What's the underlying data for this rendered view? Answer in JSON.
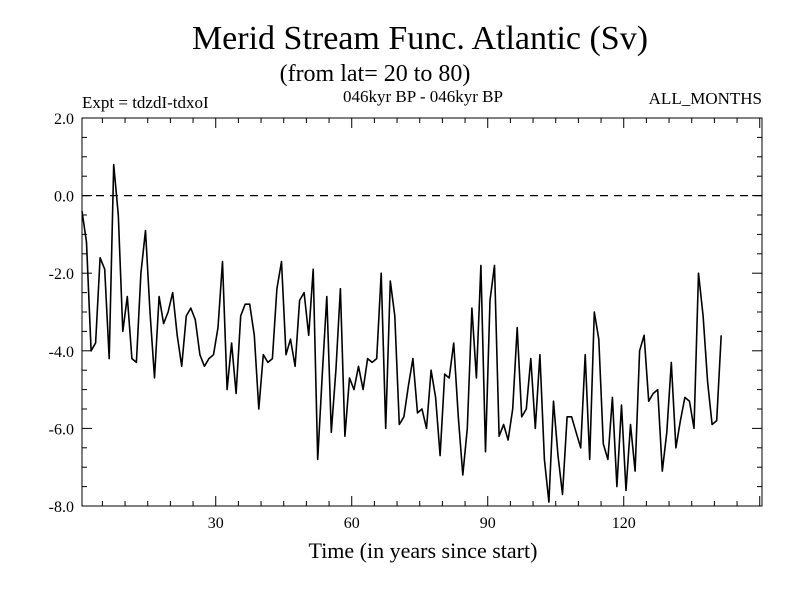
{
  "chart_data": {
    "type": "line",
    "title": "Merid Stream Func. Atlantic (Sv)",
    "subtitle": "(from lat= 20 to 80)",
    "annotation_left": "Expt = tdzdI-tdxoI",
    "annotation_center": "046kyr BP - 046kyr BP",
    "annotation_right": "ALL_MONTHS",
    "xlabel": "Time (in years since start)",
    "ylabel": "",
    "xlim": [
      0.5,
      150.5
    ],
    "ylim": [
      -8.0,
      2.0
    ],
    "x_ticks": [
      30,
      60,
      90,
      120
    ],
    "x_tick_labels": [
      "30",
      "60",
      "90",
      "120"
    ],
    "y_ticks": [
      2.0,
      0.0,
      -2.0,
      -4.0,
      -6.0,
      -8.0
    ],
    "y_tick_labels": [
      "2.0",
      "0.0",
      "-2.0",
      "-4.0",
      "-6.0",
      "-8.0"
    ],
    "reference_line": 0.0,
    "x_start": 0.5,
    "x_step": 1,
    "series": [
      {
        "name": "Merid Stream Func. Atlantic",
        "values": [
          -0.4,
          -1.2,
          -4.0,
          -3.8,
          -1.6,
          -1.9,
          -4.2,
          0.8,
          -0.5,
          -3.5,
          -2.6,
          -4.2,
          -4.3,
          -2.0,
          -0.9,
          -3.0,
          -4.7,
          -2.6,
          -3.3,
          -3.0,
          -2.5,
          -3.6,
          -4.4,
          -3.1,
          -2.9,
          -3.2,
          -4.1,
          -4.4,
          -4.2,
          -4.1,
          -3.4,
          -1.7,
          -5.0,
          -3.8,
          -5.1,
          -3.1,
          -2.8,
          -2.8,
          -3.6,
          -5.5,
          -4.1,
          -4.3,
          -4.2,
          -2.4,
          -1.7,
          -4.1,
          -3.7,
          -4.4,
          -2.7,
          -2.5,
          -3.6,
          -1.9,
          -6.8,
          -4.6,
          -2.6,
          -6.1,
          -4.5,
          -2.4,
          -6.2,
          -4.7,
          -5.0,
          -4.4,
          -5.0,
          -4.2,
          -4.3,
          -4.2,
          -2.0,
          -6.0,
          -2.2,
          -3.1,
          -5.9,
          -5.7,
          -4.9,
          -4.2,
          -5.6,
          -5.5,
          -6.0,
          -4.5,
          -5.2,
          -6.7,
          -4.6,
          -4.7,
          -3.8,
          -5.7,
          -7.2,
          -6.0,
          -2.9,
          -4.7,
          -1.8,
          -6.6,
          -2.7,
          -1.8,
          -6.2,
          -5.9,
          -6.3,
          -5.5,
          -3.4,
          -5.7,
          -5.5,
          -4.2,
          -6.0,
          -4.1,
          -6.8,
          -7.9,
          -5.3,
          -6.7,
          -7.7,
          -5.7,
          -5.7,
          -6.1,
          -6.5,
          -4.1,
          -6.8,
          -3.0,
          -3.7,
          -6.4,
          -6.8,
          -5.2,
          -7.5,
          -5.4,
          -7.6,
          -5.9,
          -7.1,
          -4.0,
          -3.6,
          -5.3,
          -5.1,
          -5.0,
          -7.1,
          -6.1,
          -4.3,
          -6.5,
          -5.8,
          -5.2,
          -5.3,
          -6.0,
          -2.0,
          -3.1,
          -4.8,
          -5.9,
          -5.8,
          -3.6
        ]
      }
    ]
  }
}
